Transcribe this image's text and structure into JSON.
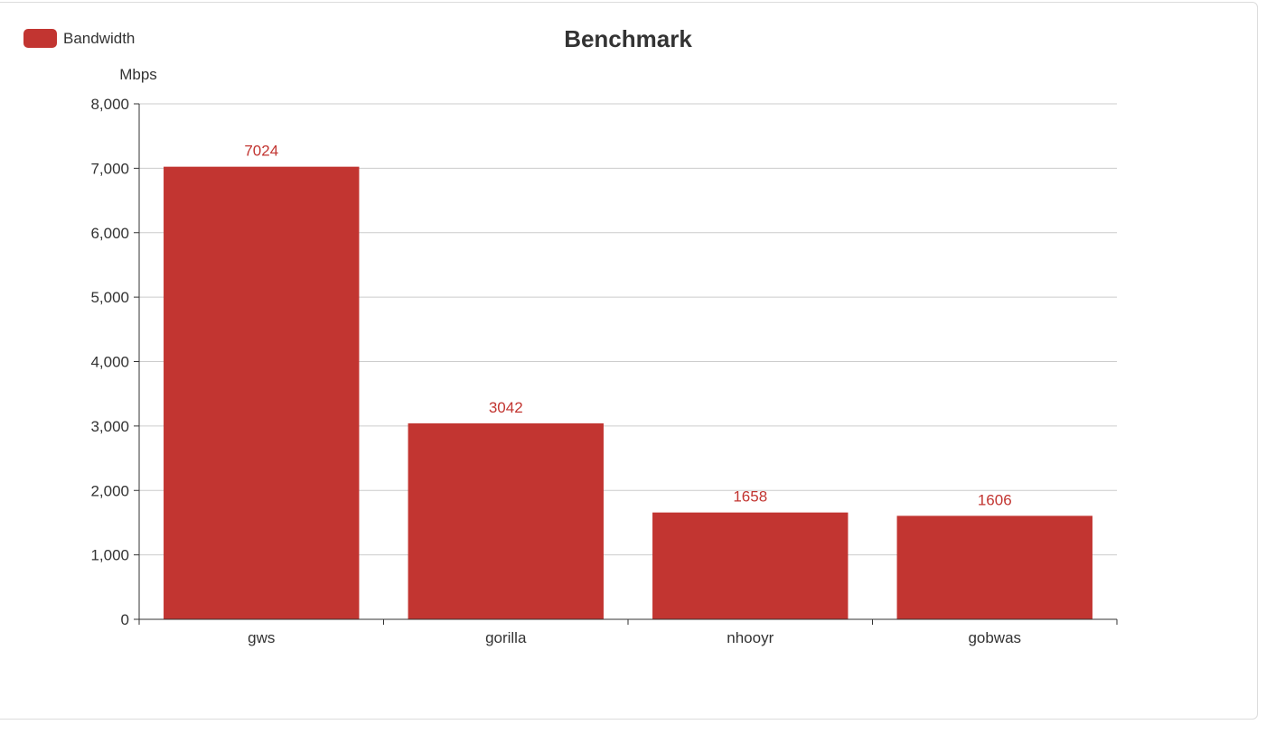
{
  "chart_data": {
    "type": "bar",
    "title": "Benchmark",
    "legend": {
      "entries": [
        "Bandwidth"
      ],
      "position": "top-left"
    },
    "ylabel": "Mbps",
    "xlabel": "",
    "categories": [
      "gws",
      "gorilla",
      "nhooyr",
      "gobwas"
    ],
    "series": [
      {
        "name": "Bandwidth",
        "values": [
          7024,
          3042,
          1658,
          1606
        ],
        "color": "#c23531"
      }
    ],
    "data_labels": [
      "7024",
      "3042",
      "1658",
      "1606"
    ],
    "ylim": [
      0,
      8000
    ],
    "yticks": [
      0,
      1000,
      2000,
      3000,
      4000,
      5000,
      6000,
      7000,
      8000
    ],
    "ytick_labels": [
      "0",
      "1,000",
      "2,000",
      "3,000",
      "4,000",
      "5,000",
      "6,000",
      "7,000",
      "8,000"
    ],
    "grid": true
  }
}
